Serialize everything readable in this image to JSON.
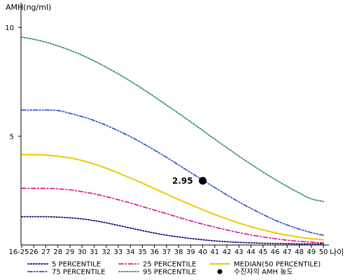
{
  "chart_data": {
    "type": "line",
    "ylabel": "AMH(ng/ml)",
    "xlabel": "나이",
    "categories": [
      "16-25",
      "26",
      "27",
      "28",
      "29",
      "30",
      "31",
      "32",
      "33",
      "34",
      "35",
      "36",
      "37",
      "38",
      "39",
      "40",
      "41",
      "42",
      "43",
      "44",
      "45",
      "46",
      "47",
      "48",
      "49",
      "50"
    ],
    "ylim": [
      0,
      11
    ],
    "yticks": [
      5,
      10
    ],
    "grid": false,
    "legend_position": "bottom",
    "series": [
      {
        "name": "5 PERCENTILE",
        "color": "#000080",
        "dash": "dotted",
        "values": [
          1.3,
          1.3,
          1.3,
          1.28,
          1.25,
          1.2,
          1.12,
          1.02,
          0.9,
          0.78,
          0.66,
          0.55,
          0.45,
          0.37,
          0.3,
          0.24,
          0.19,
          0.15,
          0.12,
          0.1,
          0.08,
          0.07,
          0.06,
          0.05,
          0.05,
          0.05
        ]
      },
      {
        "name": "25 PERCENTILE",
        "color": "#e0188a",
        "dash": "dashdot",
        "values": [
          2.6,
          2.6,
          2.6,
          2.58,
          2.53,
          2.45,
          2.35,
          2.22,
          2.08,
          1.93,
          1.77,
          1.6,
          1.44,
          1.27,
          1.11,
          0.96,
          0.82,
          0.69,
          0.57,
          0.46,
          0.37,
          0.29,
          0.22,
          0.17,
          0.13,
          0.1
        ]
      },
      {
        "name": "MEDIAN(50 PERCENTILE)",
        "color": "#f0c800",
        "dash": "solid",
        "values": [
          4.15,
          4.15,
          4.13,
          4.08,
          4.0,
          3.88,
          3.72,
          3.53,
          3.31,
          3.08,
          2.84,
          2.59,
          2.34,
          2.09,
          1.85,
          1.62,
          1.4,
          1.2,
          1.01,
          0.84,
          0.69,
          0.56,
          0.45,
          0.36,
          0.29,
          0.24
        ]
      },
      {
        "name": "75 PERCENTILE",
        "color": "#3050c8",
        "dash": "dashdotdot",
        "values": [
          6.2,
          6.2,
          6.2,
          6.18,
          6.05,
          5.9,
          5.72,
          5.5,
          5.25,
          4.98,
          4.68,
          4.36,
          4.03,
          3.68,
          3.33,
          2.98,
          2.64,
          2.3,
          1.98,
          1.68,
          1.4,
          1.14,
          0.92,
          0.73,
          0.57,
          0.45
        ]
      },
      {
        "name": "95 PERCENTILE",
        "color": "#2a8a50",
        "dash": "dotted",
        "values": [
          9.55,
          9.45,
          9.32,
          9.15,
          8.95,
          8.72,
          8.46,
          8.17,
          7.86,
          7.53,
          7.18,
          6.81,
          6.43,
          6.05,
          5.66,
          5.26,
          4.86,
          4.47,
          4.08,
          3.71,
          3.35,
          3.01,
          2.69,
          2.39,
          2.12,
          2.0
        ]
      }
    ],
    "patient_point": {
      "name": "수진자의 AMH 농도",
      "x": "40",
      "y": 2.95,
      "label": "2.95",
      "color": "#000000"
    }
  }
}
